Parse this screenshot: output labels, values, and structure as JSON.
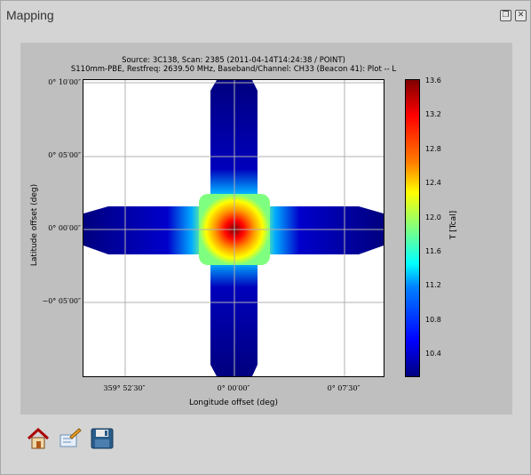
{
  "window": {
    "title": "Mapping"
  },
  "plot": {
    "title_line1": "Source: 3C138, Scan: 2385 (2011-04-14T14:24:38 / POINT)",
    "title_line2": "S110mm-PBE, Restfreq: 2639.50 MHz, Baseband/Channel: CH33 (Beacon 41): Plot -- L",
    "xlabel": "Longitude offset (deg)",
    "ylabel": "Latitude offset (deg)",
    "x_ticks": [
      "359° 52′30″",
      "0° 00′00″",
      "0° 07′30″"
    ],
    "y_ticks": [
      "0° 10′00″",
      "0° 05′00″",
      "0° 00′00″",
      "−0° 05′00″"
    ],
    "colorbar": {
      "label": "T [Tcal]",
      "ticks": [
        "13.6",
        "13.2",
        "12.8",
        "12.4",
        "12.0",
        "11.6",
        "11.2",
        "10.8",
        "10.4"
      ],
      "colormap": "jet"
    }
  },
  "toolbar": {
    "buttons": [
      {
        "name": "home",
        "icon": "home-icon"
      },
      {
        "name": "edit",
        "icon": "edit-icon"
      },
      {
        "name": "save",
        "icon": "save-icon"
      }
    ]
  }
}
